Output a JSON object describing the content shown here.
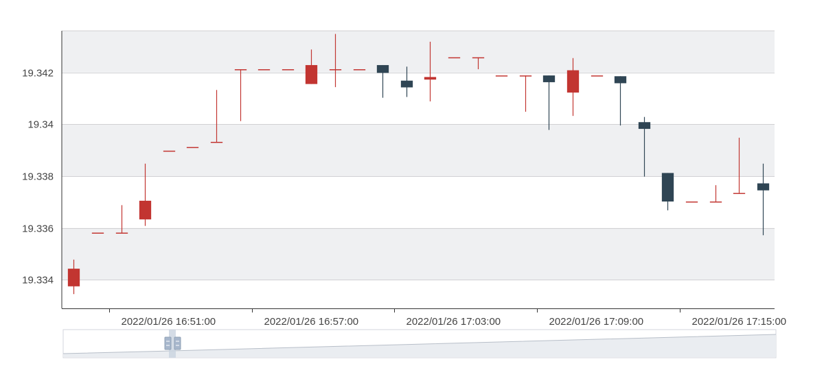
{
  "chart_data": {
    "type": "candlestick",
    "title": "",
    "xlabel": "",
    "ylabel": "",
    "ylim": [
      19.3329,
      19.3436
    ],
    "y_ticks": [
      "19.334",
      "19.336",
      "19.338",
      "19.34",
      "19.342"
    ],
    "y_tick_values": [
      19.334,
      19.336,
      19.338,
      19.34,
      19.342
    ],
    "x_tick_labels": [
      "2022/01/26 16:51:00",
      "2022/01/26 16:57:00",
      "2022/01/26 17:03:00",
      "2022/01/26 17:09:00",
      "2022/01/26 17:15:00"
    ],
    "x_tick_index": [
      2,
      8,
      14,
      20,
      26
    ],
    "grid": true,
    "banded_background": true,
    "colors": {
      "up": "#c23531",
      "down": "#2f4554",
      "band": "#eff0f2",
      "grid": "#d0d0d3",
      "axis": "#333333"
    },
    "candles": [
      {
        "open": 19.33375,
        "close": 19.33443,
        "low": 19.33345,
        "high": 19.33478
      },
      {
        "open": 19.33582,
        "close": 19.33582,
        "low": 19.33582,
        "high": 19.33582
      },
      {
        "open": 19.33582,
        "close": 19.33582,
        "low": 19.33582,
        "high": 19.33688
      },
      {
        "open": 19.33633,
        "close": 19.33705,
        "low": 19.33608,
        "high": 19.33848
      },
      {
        "open": 19.33898,
        "close": 19.33898,
        "low": 19.33898,
        "high": 19.33898
      },
      {
        "open": 19.33912,
        "close": 19.33912,
        "low": 19.33912,
        "high": 19.33912
      },
      {
        "open": 19.33932,
        "close": 19.33932,
        "low": 19.33932,
        "high": 19.34132
      },
      {
        "open": 19.34212,
        "close": 19.34212,
        "low": 19.34012,
        "high": 19.34212
      },
      {
        "open": 19.34212,
        "close": 19.34212,
        "low": 19.34212,
        "high": 19.34212
      },
      {
        "open": 19.34212,
        "close": 19.34212,
        "low": 19.34212,
        "high": 19.34212
      },
      {
        "open": 19.34155,
        "close": 19.34228,
        "low": 19.34155,
        "high": 19.34288
      },
      {
        "open": 19.34212,
        "close": 19.34212,
        "low": 19.34143,
        "high": 19.34348
      },
      {
        "open": 19.34212,
        "close": 19.34212,
        "low": 19.34212,
        "high": 19.34212
      },
      {
        "open": 19.34228,
        "close": 19.34198,
        "low": 19.34102,
        "high": 19.34228
      },
      {
        "open": 19.34168,
        "close": 19.34142,
        "low": 19.34105,
        "high": 19.34222
      },
      {
        "open": 19.34172,
        "close": 19.34182,
        "low": 19.34088,
        "high": 19.34318
      },
      {
        "open": 19.34258,
        "close": 19.34258,
        "low": 19.34258,
        "high": 19.34258
      },
      {
        "open": 19.34258,
        "close": 19.34258,
        "low": 19.34212,
        "high": 19.34258
      },
      {
        "open": 19.34188,
        "close": 19.34188,
        "low": 19.34188,
        "high": 19.34188
      },
      {
        "open": 19.34188,
        "close": 19.34188,
        "low": 19.34048,
        "high": 19.34188
      },
      {
        "open": 19.34188,
        "close": 19.34162,
        "low": 19.33978,
        "high": 19.34188
      },
      {
        "open": 19.34122,
        "close": 19.34208,
        "low": 19.34032,
        "high": 19.34255
      },
      {
        "open": 19.34188,
        "close": 19.34188,
        "low": 19.34188,
        "high": 19.34188
      },
      {
        "open": 19.34185,
        "close": 19.34158,
        "low": 19.33995,
        "high": 19.34185
      },
      {
        "open": 19.34008,
        "close": 19.33982,
        "low": 19.33798,
        "high": 19.34028
      },
      {
        "open": 19.33812,
        "close": 19.33702,
        "low": 19.33668,
        "high": 19.33812
      },
      {
        "open": 19.33702,
        "close": 19.33702,
        "low": 19.33702,
        "high": 19.33702
      },
      {
        "open": 19.33702,
        "close": 19.33702,
        "low": 19.33702,
        "high": 19.33765
      },
      {
        "open": 19.33735,
        "close": 19.33735,
        "low": 19.33735,
        "high": 19.33948
      },
      {
        "open": 19.33772,
        "close": 19.33745,
        "low": 19.33572,
        "high": 19.33848
      }
    ]
  }
}
